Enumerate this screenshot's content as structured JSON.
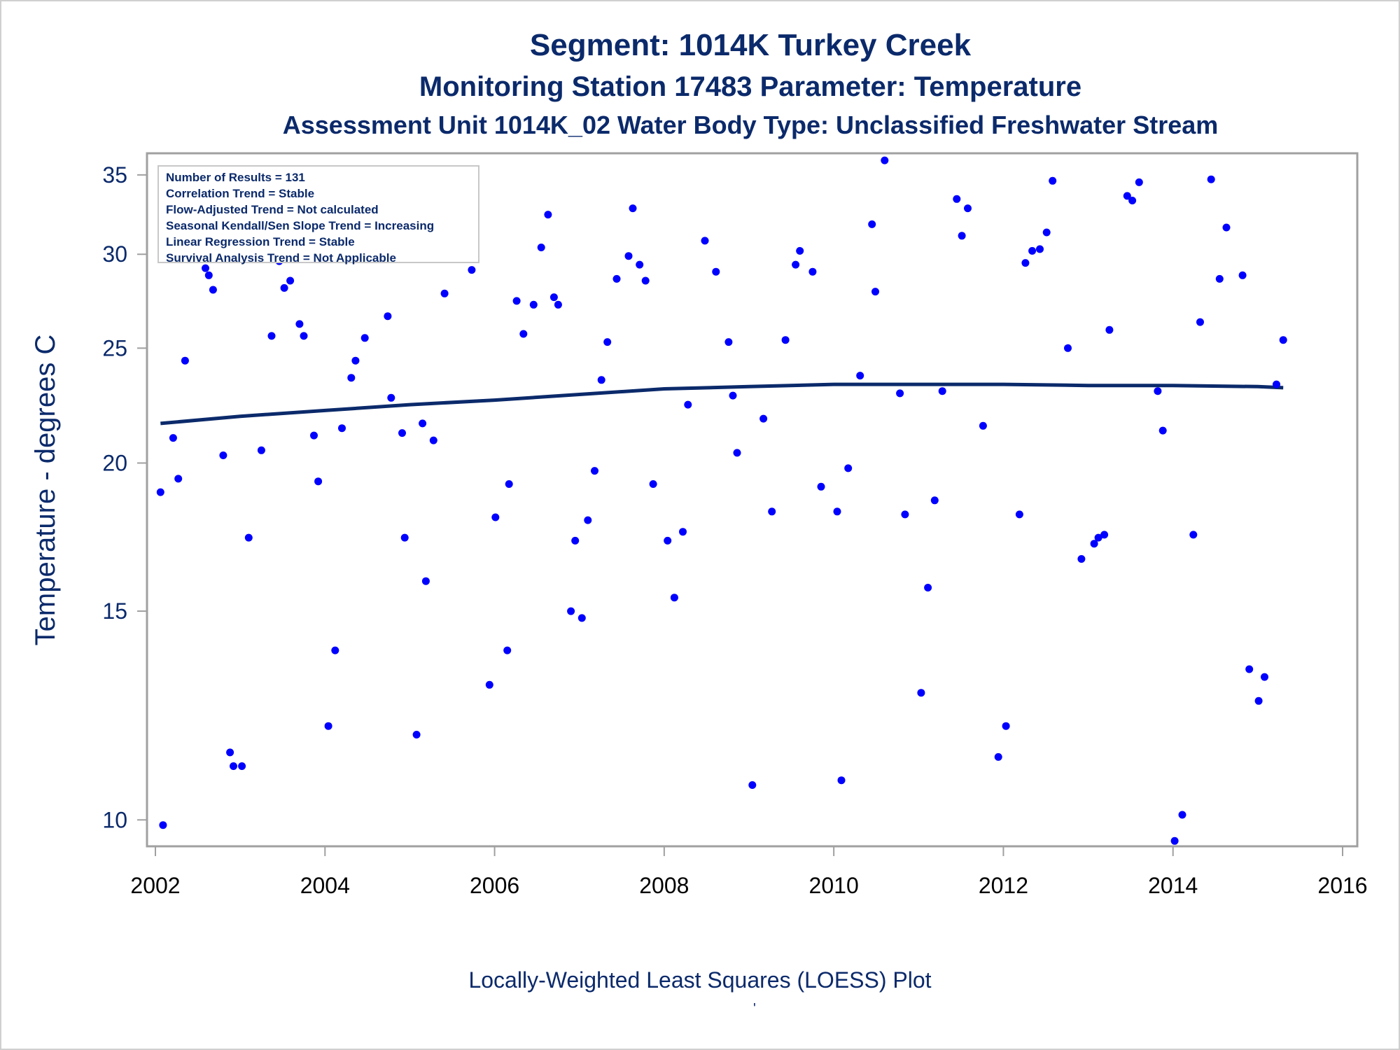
{
  "titles": {
    "line1": "Segment: 1014K  Turkey Creek",
    "line2": "Monitoring Station 17483 Parameter: Temperature",
    "line3": "Assessment Unit 1014K_02   Water Body Type: Unclassified Freshwater Stream"
  },
  "footnote": "Locally-Weighted Least Squares (LOESS) Plot",
  "footnote_mark": "'",
  "stats": [
    "Number of Results = 131",
    "Correlation Trend = Stable",
    "Flow-Adjusted Trend = Not calculated",
    "Seasonal Kendall/Sen Slope Trend = Increasing",
    "Linear Regression Trend = Stable",
    "Survival Analysis Trend = Not Applicable"
  ],
  "colors": {
    "points": "#0000ff",
    "loess": "#0b2a6b",
    "text": "#0b2a6b",
    "frame": "#a0a0a0"
  },
  "chart_data": {
    "type": "scatter",
    "ylabel": "Temperature - degrees C",
    "xlabel": "",
    "y_scale": "log",
    "ylim": [
      9.5,
      36.5
    ],
    "xlim": [
      2002.0,
      2016.0
    ],
    "x_ticks": [
      2002,
      2004,
      2006,
      2008,
      2010,
      2012,
      2014,
      2016
    ],
    "y_ticks": [
      10,
      15,
      20,
      25,
      30,
      35
    ],
    "points": [
      [
        2002.06,
        18.9
      ],
      [
        2002.09,
        9.9
      ],
      [
        2002.21,
        21.0
      ],
      [
        2002.27,
        19.4
      ],
      [
        2002.35,
        24.4
      ],
      [
        2002.42,
        32.6
      ],
      [
        2002.59,
        29.2
      ],
      [
        2002.63,
        28.8
      ],
      [
        2002.68,
        28.0
      ],
      [
        2002.8,
        20.3
      ],
      [
        2002.88,
        11.4
      ],
      [
        2002.92,
        11.1
      ],
      [
        2003.02,
        11.1
      ],
      [
        2003.1,
        17.3
      ],
      [
        2003.25,
        20.5
      ],
      [
        2003.37,
        25.6
      ],
      [
        2003.46,
        29.6
      ],
      [
        2003.52,
        28.1
      ],
      [
        2003.59,
        28.5
      ],
      [
        2003.7,
        26.2
      ],
      [
        2003.75,
        25.6
      ],
      [
        2003.87,
        21.1
      ],
      [
        2003.92,
        19.3
      ],
      [
        2004.04,
        12.0
      ],
      [
        2004.12,
        13.9
      ],
      [
        2004.2,
        21.4
      ],
      [
        2004.31,
        23.6
      ],
      [
        2004.36,
        24.4
      ],
      [
        2004.47,
        25.5
      ],
      [
        2004.52,
        29.9
      ],
      [
        2004.6,
        33.7
      ],
      [
        2004.74,
        26.6
      ],
      [
        2004.78,
        22.7
      ],
      [
        2004.91,
        21.2
      ],
      [
        2004.94,
        17.3
      ],
      [
        2005.08,
        11.8
      ],
      [
        2005.15,
        21.6
      ],
      [
        2005.19,
        15.9
      ],
      [
        2005.28,
        20.9
      ],
      [
        2005.41,
        27.8
      ],
      [
        2005.73,
        29.1
      ],
      [
        2005.94,
        13.0
      ],
      [
        2006.01,
        18.0
      ],
      [
        2006.15,
        13.9
      ],
      [
        2006.17,
        19.2
      ],
      [
        2006.26,
        27.4
      ],
      [
        2006.34,
        25.7
      ],
      [
        2006.46,
        27.2
      ],
      [
        2006.55,
        30.4
      ],
      [
        2006.63,
        32.4
      ],
      [
        2006.7,
        27.6
      ],
      [
        2006.75,
        27.2
      ],
      [
        2006.9,
        15.0
      ],
      [
        2006.95,
        17.2
      ],
      [
        2007.03,
        14.8
      ],
      [
        2007.1,
        17.9
      ],
      [
        2007.18,
        19.7
      ],
      [
        2007.26,
        23.5
      ],
      [
        2007.33,
        25.3
      ],
      [
        2007.44,
        28.6
      ],
      [
        2007.58,
        29.9
      ],
      [
        2007.63,
        32.8
      ],
      [
        2007.71,
        29.4
      ],
      [
        2007.78,
        28.5
      ],
      [
        2007.87,
        19.2
      ],
      [
        2008.04,
        17.2
      ],
      [
        2008.12,
        15.4
      ],
      [
        2008.22,
        17.5
      ],
      [
        2008.28,
        22.4
      ],
      [
        2008.48,
        30.8
      ],
      [
        2008.61,
        29.0
      ],
      [
        2008.76,
        25.3
      ],
      [
        2008.81,
        22.8
      ],
      [
        2008.86,
        20.4
      ],
      [
        2009.04,
        10.7
      ],
      [
        2009.17,
        21.8
      ],
      [
        2009.27,
        18.2
      ],
      [
        2009.43,
        25.4
      ],
      [
        2009.55,
        29.4
      ],
      [
        2009.6,
        30.2
      ],
      [
        2009.75,
        29.0
      ],
      [
        2009.85,
        19.1
      ],
      [
        2010.04,
        18.2
      ],
      [
        2010.09,
        10.8
      ],
      [
        2010.17,
        19.8
      ],
      [
        2010.31,
        23.7
      ],
      [
        2010.45,
        31.8
      ],
      [
        2010.49,
        27.9
      ],
      [
        2010.6,
        36.0
      ],
      [
        2010.78,
        22.9
      ],
      [
        2010.84,
        18.1
      ],
      [
        2011.03,
        12.8
      ],
      [
        2011.11,
        15.7
      ],
      [
        2011.19,
        18.6
      ],
      [
        2011.28,
        23.0
      ],
      [
        2011.45,
        33.4
      ],
      [
        2011.51,
        31.1
      ],
      [
        2011.58,
        32.8
      ],
      [
        2011.76,
        21.5
      ],
      [
        2011.94,
        11.3
      ],
      [
        2012.03,
        12.0
      ],
      [
        2012.19,
        18.1
      ],
      [
        2012.26,
        29.5
      ],
      [
        2012.34,
        30.2
      ],
      [
        2012.43,
        30.3
      ],
      [
        2012.51,
        31.3
      ],
      [
        2012.58,
        34.6
      ],
      [
        2012.76,
        25.0
      ],
      [
        2012.92,
        16.6
      ],
      [
        2013.07,
        17.1
      ],
      [
        2013.12,
        17.3
      ],
      [
        2013.19,
        17.4
      ],
      [
        2013.25,
        25.9
      ],
      [
        2013.46,
        33.6
      ],
      [
        2013.52,
        33.3
      ],
      [
        2013.6,
        34.5
      ],
      [
        2013.82,
        23.0
      ],
      [
        2013.88,
        21.3
      ],
      [
        2014.02,
        9.6
      ],
      [
        2014.11,
        10.1
      ],
      [
        2014.24,
        17.4
      ],
      [
        2014.32,
        26.3
      ],
      [
        2014.45,
        34.7
      ],
      [
        2014.55,
        28.6
      ],
      [
        2014.63,
        31.6
      ],
      [
        2014.82,
        28.8
      ],
      [
        2014.9,
        13.4
      ],
      [
        2015.01,
        12.6
      ],
      [
        2015.08,
        13.2
      ],
      [
        2015.22,
        23.3
      ],
      [
        2015.3,
        25.4
      ]
    ],
    "loess": [
      [
        2002.06,
        21.6
      ],
      [
        2003.0,
        21.9
      ],
      [
        2004.0,
        22.15
      ],
      [
        2005.0,
        22.4
      ],
      [
        2006.0,
        22.6
      ],
      [
        2007.0,
        22.85
      ],
      [
        2008.0,
        23.1
      ],
      [
        2009.0,
        23.2
      ],
      [
        2010.0,
        23.3
      ],
      [
        2011.0,
        23.3
      ],
      [
        2012.0,
        23.3
      ],
      [
        2013.0,
        23.25
      ],
      [
        2014.0,
        23.25
      ],
      [
        2015.0,
        23.2
      ],
      [
        2015.3,
        23.15
      ]
    ]
  }
}
